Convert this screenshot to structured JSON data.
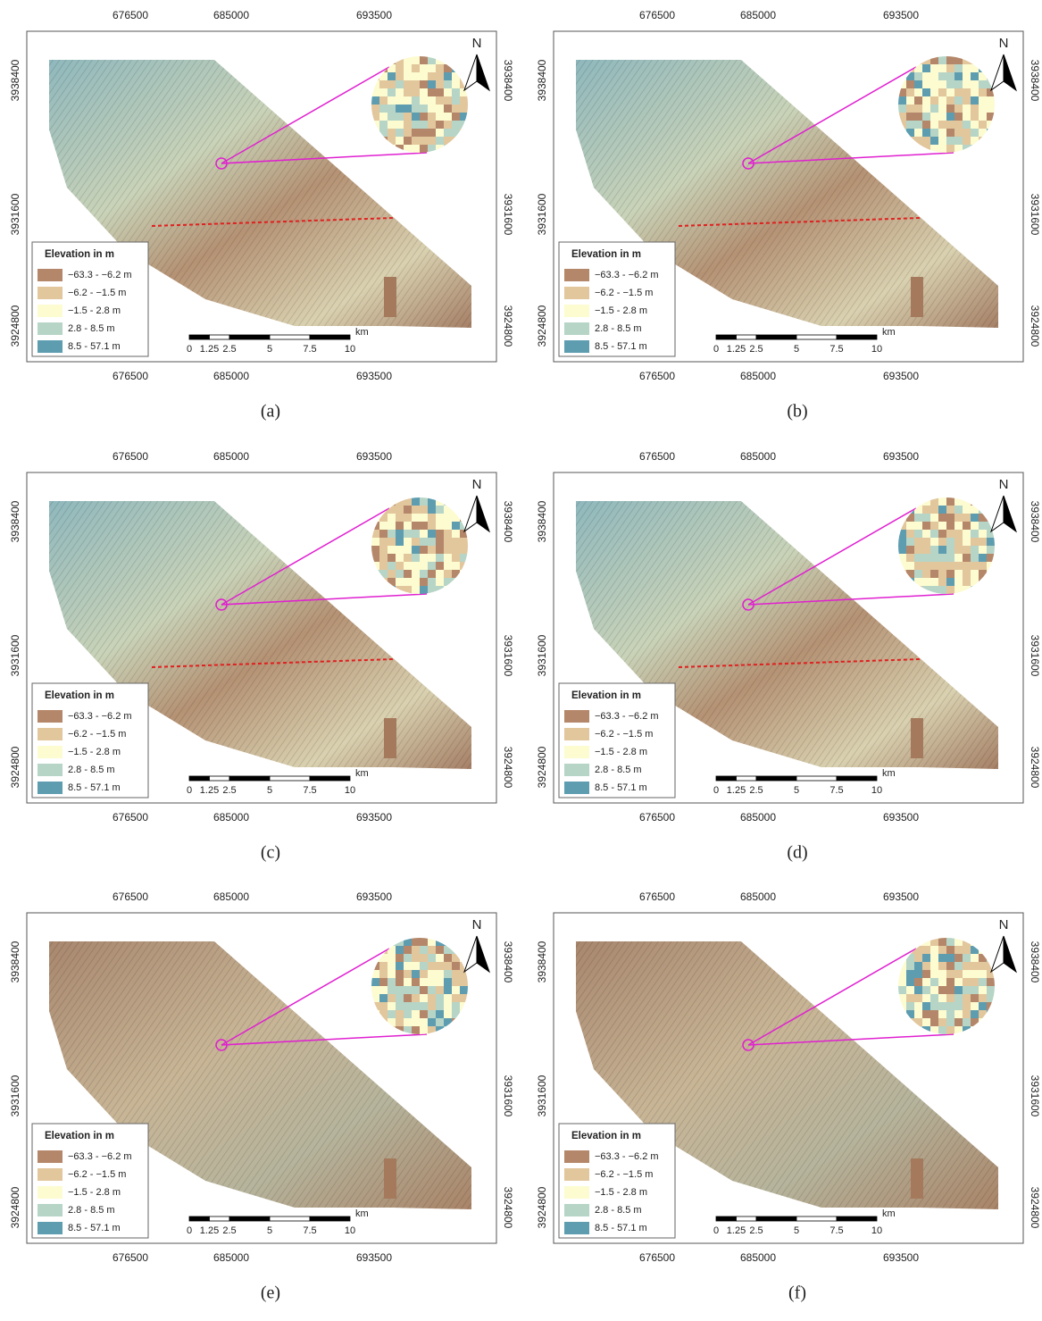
{
  "map_frame": {
    "x_ticks": [
      "676500",
      "685000",
      "693500"
    ],
    "y_ticks": [
      "3938400",
      "3931600",
      "3924800"
    ],
    "north": "N",
    "legend": {
      "title": "Elevation in m",
      "items": [
        {
          "label": "−63.3 - −6.2 m",
          "color": "#b5876a"
        },
        {
          "label": "−6.2 - −1.5 m",
          "color": "#e2c69c"
        },
        {
          "label": "−1.5 - 2.8 m",
          "color": "#fdfbd0"
        },
        {
          "label": "2.8 - 8.5 m",
          "color": "#b6d5c6"
        },
        {
          "label": "8.5 - 57.1 m",
          "color": "#5e9db0"
        }
      ]
    },
    "scale_bar": {
      "ticks": [
        0,
        1.25,
        2.5,
        5,
        7.5,
        10
      ],
      "unit": "km"
    }
  },
  "panels": [
    {
      "caption": "(a)"
    },
    {
      "caption": "(b)"
    },
    {
      "caption": "(c)"
    },
    {
      "caption": "(d)"
    },
    {
      "caption": "(e)"
    },
    {
      "caption": "(f)"
    }
  ]
}
